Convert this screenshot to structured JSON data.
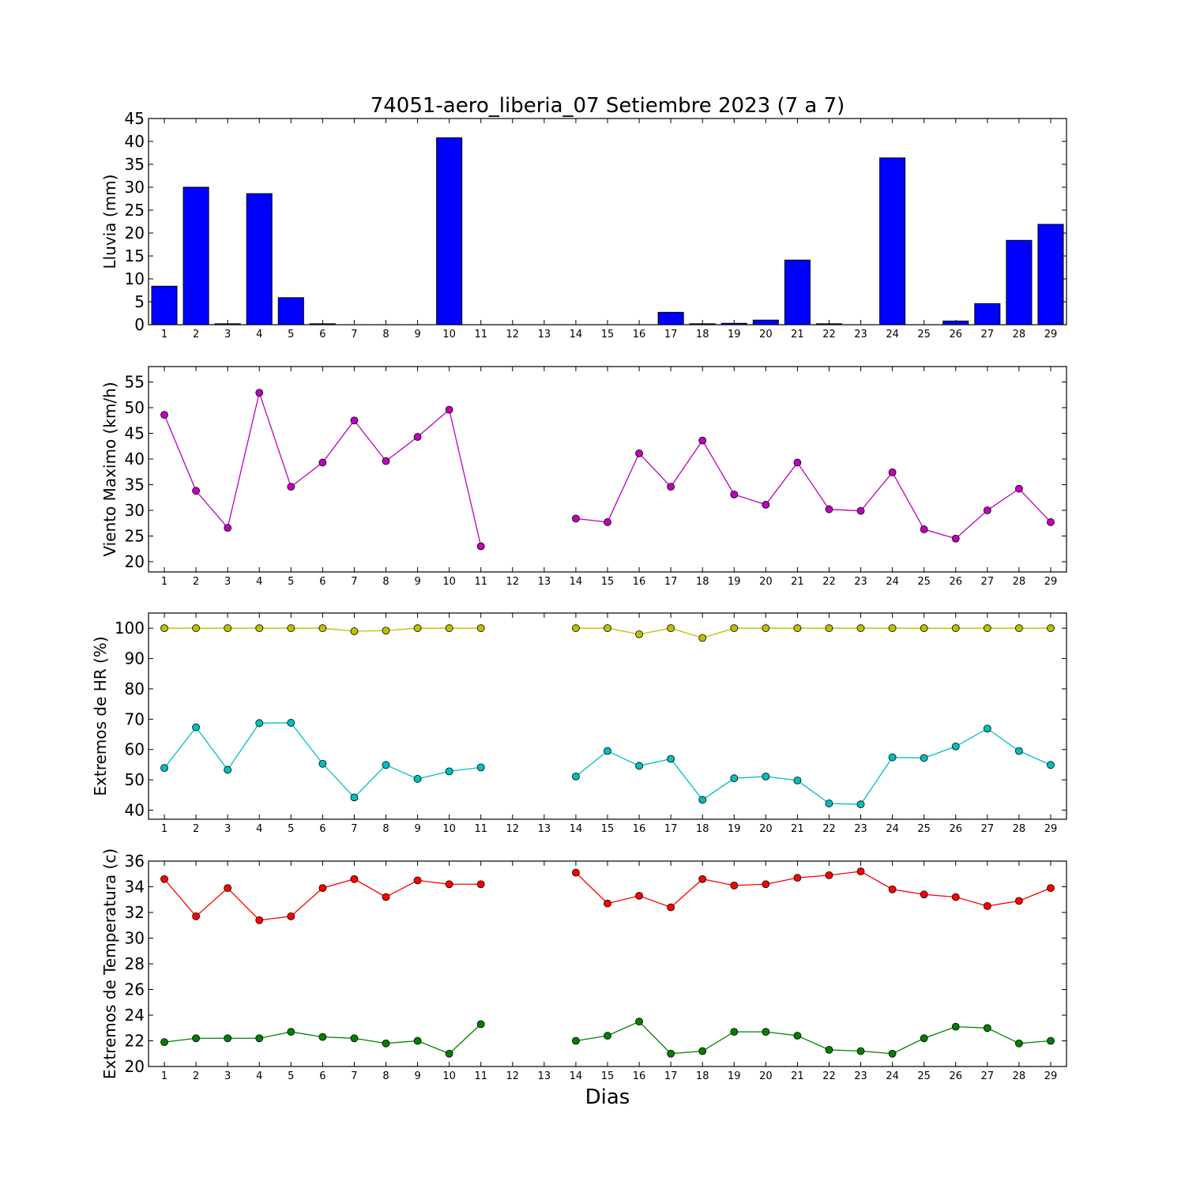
{
  "title": "74051-aero_liberia_07 Setiembre 2023  (7 a 7)",
  "xlabel": "Dias",
  "chart_data": [
    {
      "type": "bar",
      "ylabel": "Lluvia (mm)",
      "ylim": [
        0,
        45
      ],
      "yticks": [
        0,
        5,
        10,
        15,
        20,
        25,
        30,
        35,
        40,
        45
      ],
      "categories": [
        "1",
        "2",
        "3",
        "4",
        "5",
        "6",
        "7",
        "8",
        "9",
        "10",
        "11",
        "12",
        "13",
        "14",
        "15",
        "16",
        "17",
        "18",
        "19",
        "20",
        "21",
        "22",
        "23",
        "24",
        "25",
        "26",
        "27",
        "28",
        "29"
      ],
      "series": [
        {
          "color": "#0000ff",
          "values": [
            8.4,
            30.0,
            0.2,
            28.6,
            5.9,
            0.2,
            0,
            0,
            0,
            40.8,
            0,
            0,
            0,
            0,
            0,
            0,
            2.7,
            0.2,
            0.3,
            1.0,
            14.1,
            0.2,
            0,
            36.4,
            0,
            0.8,
            4.6,
            18.4,
            21.9
          ]
        }
      ]
    },
    {
      "type": "line",
      "ylabel": "Viento Maximo (km/h)",
      "ylim": [
        18,
        58
      ],
      "yticks": [
        20,
        25,
        30,
        35,
        40,
        45,
        50,
        55
      ],
      "x": [
        1,
        2,
        3,
        4,
        5,
        6,
        7,
        8,
        9,
        10,
        11,
        12,
        13,
        14,
        15,
        16,
        17,
        18,
        19,
        20,
        21,
        22,
        23,
        24,
        25,
        26,
        27,
        28,
        29
      ],
      "series": [
        {
          "color": "#bf00bf",
          "values": [
            48.6,
            33.8,
            26.6,
            52.9,
            34.6,
            39.3,
            47.5,
            39.6,
            44.3,
            49.6,
            23.0,
            null,
            null,
            28.4,
            27.7,
            41.1,
            34.6,
            43.6,
            33.1,
            31.1,
            39.3,
            30.2,
            29.9,
            37.4,
            26.3,
            24.5,
            30.0,
            34.2,
            27.7
          ]
        }
      ]
    },
    {
      "type": "line",
      "ylabel": "Extremos de HR (%)",
      "ylim": [
        37,
        105
      ],
      "yticks": [
        40,
        50,
        60,
        70,
        80,
        90,
        100
      ],
      "x": [
        1,
        2,
        3,
        4,
        5,
        6,
        7,
        8,
        9,
        10,
        11,
        12,
        13,
        14,
        15,
        16,
        17,
        18,
        19,
        20,
        21,
        22,
        23,
        24,
        25,
        26,
        27,
        28,
        29
      ],
      "series": [
        {
          "color": "#bfbf00",
          "values": [
            100,
            100,
            100,
            100,
            100,
            100,
            99,
            99.2,
            100,
            100,
            100,
            null,
            null,
            100,
            100,
            98,
            100,
            96.8,
            100,
            100,
            100,
            100,
            100,
            100,
            100,
            100,
            100,
            100,
            100
          ]
        },
        {
          "color": "#00bfbf",
          "values": [
            53.9,
            67.3,
            53.3,
            68.7,
            68.8,
            55.3,
            44.2,
            54.9,
            50.3,
            52.8,
            54.1,
            null,
            null,
            51.1,
            59.5,
            54.6,
            56.9,
            43.4,
            50.5,
            51.1,
            49.8,
            42.2,
            41.9,
            57.4,
            57.2,
            61.0,
            66.9,
            59.5,
            54.9
          ]
        }
      ]
    },
    {
      "type": "line",
      "ylabel": "Extremos de Temperatura (c)",
      "ylim": [
        20,
        36
      ],
      "yticks": [
        20,
        22,
        24,
        26,
        28,
        30,
        32,
        34,
        36
      ],
      "x": [
        1,
        2,
        3,
        4,
        5,
        6,
        7,
        8,
        9,
        10,
        11,
        12,
        13,
        14,
        15,
        16,
        17,
        18,
        19,
        20,
        21,
        22,
        23,
        24,
        25,
        26,
        27,
        28,
        29
      ],
      "series": [
        {
          "color": "#ff0000",
          "values": [
            34.6,
            31.7,
            33.9,
            31.4,
            31.7,
            33.9,
            34.6,
            33.2,
            34.5,
            34.2,
            34.2,
            null,
            null,
            35.1,
            32.7,
            33.3,
            32.4,
            34.6,
            34.1,
            34.2,
            34.7,
            34.9,
            35.2,
            33.8,
            33.4,
            33.2,
            32.5,
            32.9,
            33.9
          ]
        },
        {
          "color": "#008000",
          "values": [
            21.9,
            22.2,
            22.2,
            22.2,
            22.7,
            22.3,
            22.2,
            21.8,
            22.0,
            21.0,
            23.3,
            null,
            null,
            22.0,
            22.4,
            23.5,
            21.0,
            21.2,
            22.7,
            22.7,
            22.4,
            21.3,
            21.2,
            21.0,
            22.2,
            23.1,
            23.0,
            21.8,
            22.0
          ]
        }
      ]
    }
  ]
}
